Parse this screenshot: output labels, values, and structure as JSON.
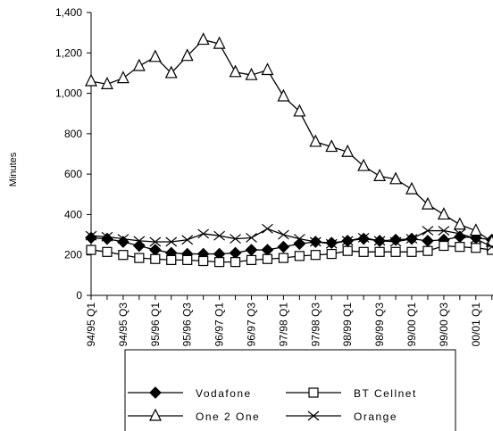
{
  "chart_data": {
    "type": "line",
    "y_label": "Minutes",
    "categories": [
      "94/95 Q1",
      null,
      "94/95 Q3",
      null,
      "95/96 Q1",
      null,
      "95/96 Q3",
      null,
      "96/97 Q1",
      null,
      "96/97 Q3",
      null,
      "97/98 Q1",
      null,
      "97/98 Q3",
      null,
      "98/99 Q1",
      null,
      "98/99 Q3",
      null,
      "99/00 Q1",
      null,
      "99/00 Q3",
      null,
      "00/01 Q1",
      null
    ],
    "series": [
      {
        "name": "Vodafone",
        "color": "#000000",
        "marker": "diamond",
        "values": [
          285,
          280,
          265,
          245,
          225,
          210,
          205,
          205,
          205,
          210,
          225,
          225,
          240,
          255,
          265,
          260,
          270,
          280,
          270,
          275,
          280,
          270,
          275,
          290,
          285,
          275
        ]
      },
      {
        "name": "BT Cellnet",
        "color": "#000000",
        "marker": "square",
        "values": [
          225,
          215,
          200,
          185,
          180,
          175,
          175,
          170,
          165,
          165,
          175,
          180,
          185,
          195,
          200,
          205,
          220,
          215,
          215,
          215,
          215,
          220,
          245,
          240,
          235,
          225
        ]
      },
      {
        "name": "One 2 One",
        "color": "#000000",
        "marker": "triangle",
        "values": [
          1060,
          1045,
          1075,
          1135,
          1180,
          1100,
          1185,
          1265,
          1245,
          1105,
          1090,
          1115,
          985,
          910,
          760,
          735,
          710,
          640,
          590,
          575,
          525,
          450,
          400,
          350,
          320,
          265
        ]
      },
      {
        "name": "Orange",
        "color": "#000000",
        "marker": "x",
        "values": [
          295,
          290,
          280,
          270,
          265,
          265,
          275,
          305,
          295,
          280,
          285,
          330,
          300,
          280,
          265,
          255,
          270,
          285,
          270,
          265,
          280,
          320,
          320,
          305,
          280,
          240
        ]
      }
    ],
    "ylim": [
      0,
      1400
    ],
    "yticks": [
      0,
      200,
      400,
      600,
      800,
      {
        "value": 1000,
        "label": "1,000"
      },
      {
        "value": 1200,
        "label": "1,200"
      },
      {
        "value": 1400,
        "label": "1,400"
      }
    ],
    "grid": false,
    "legend": "bottom"
  }
}
